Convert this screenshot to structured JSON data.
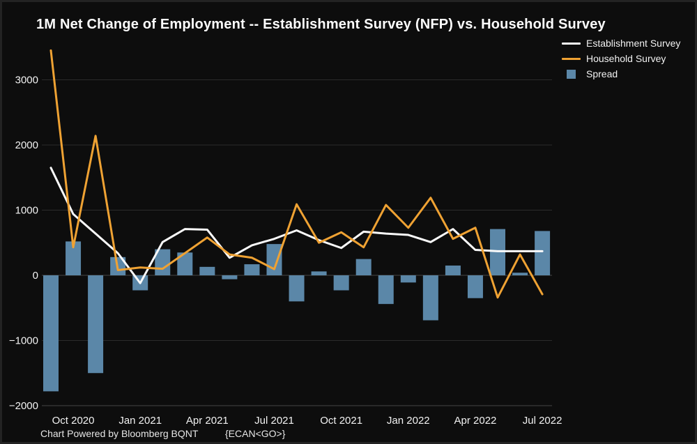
{
  "chart_data": {
    "type": "line+bar",
    "title": "1M Net Change of Employment -- Establishment Survey (NFP) vs. Household Survey",
    "categories": [
      "Sep 2020",
      "Oct 2020",
      "Nov 2020",
      "Dec 2020",
      "Jan 2021",
      "Feb 2021",
      "Mar 2021",
      "Apr 2021",
      "May 2021",
      "Jun 2021",
      "Jul 2021",
      "Aug 2021",
      "Sep 2021",
      "Oct 2021",
      "Nov 2021",
      "Dec 2021",
      "Jan 2022",
      "Feb 2022",
      "Mar 2022",
      "Apr 2022",
      "May 2022",
      "Jun 2022",
      "Jul 2022"
    ],
    "series": [
      {
        "name": "Establishment Survey",
        "type": "line",
        "color": "#fafafa",
        "values": [
          1650,
          940,
          640,
          340,
          -120,
          510,
          710,
          700,
          270,
          460,
          560,
          690,
          540,
          420,
          670,
          640,
          620,
          510,
          710,
          390,
          370,
          370,
          370
        ]
      },
      {
        "name": "Household Survey",
        "type": "line",
        "color": "#efa233",
        "values": [
          3450,
          430,
          2140,
          80,
          120,
          100,
          340,
          580,
          320,
          270,
          95,
          1090,
          500,
          660,
          430,
          1080,
          730,
          1190,
          560,
          730,
          -340,
          320,
          -290
        ]
      },
      {
        "name": "Spread",
        "type": "bar",
        "color": "#5b87a8",
        "values": [
          -1780,
          520,
          -1500,
          280,
          -230,
          400,
          350,
          130,
          -60,
          170,
          480,
          -400,
          60,
          -230,
          250,
          -440,
          -110,
          -690,
          150,
          -350,
          710,
          40,
          680
        ]
      }
    ],
    "ylim": [
      -2000,
      3500
    ],
    "yticks": [
      3000,
      2000,
      1000,
      0,
      -1000,
      -2000
    ],
    "ytick_labels": [
      "3000",
      "2000",
      "1000",
      "0",
      "−1000",
      "−2000"
    ],
    "xtick_indices": [
      1,
      4,
      7,
      10,
      13,
      16,
      19,
      22
    ],
    "xtick_labels": [
      "Oct 2020",
      "Jan 2021",
      "Apr 2021",
      "Jul 2021",
      "Oct 2021",
      "Jan 2022",
      "Apr 2022",
      "Jul 2022"
    ],
    "grid": true,
    "legend_position": "top-right",
    "background_color": "#0d0d0d",
    "gridline_color": "#2c2c2c",
    "axis_text_color": "#f2f2f2"
  },
  "footer": {
    "left": "Chart Powered by Bloomberg BQNT",
    "right": "{ECAN<GO>}"
  }
}
